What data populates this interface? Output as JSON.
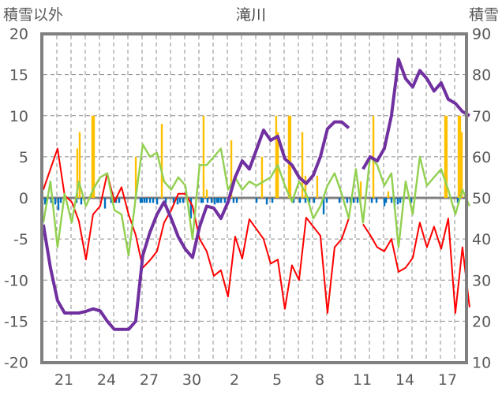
{
  "chart_data": {
    "type": "line",
    "title": "滝川",
    "ylabel_left": "積雪以外",
    "ylabel_right": "積雪",
    "ylim_left": [
      -20,
      20
    ],
    "ylim_right": [
      10,
      90
    ],
    "yticks_left": [
      "20",
      "15",
      "10",
      "5",
      "0",
      "-5",
      "-10",
      "-15",
      "-20"
    ],
    "yticks_right": [
      "90",
      "80",
      "70",
      "60",
      "50",
      "40",
      "30",
      "20",
      "10"
    ],
    "xlim_days": [
      0,
      30
    ],
    "x_categories_start_day": 20,
    "xtick_labels": [
      {
        "label": "21",
        "day": 1.5
      },
      {
        "label": "24",
        "day": 4.5
      },
      {
        "label": "27",
        "day": 7.5
      },
      {
        "label": "30",
        "day": 10.5
      },
      {
        "label": "2",
        "day": 13.5
      },
      {
        "label": "5",
        "day": 16.5
      },
      {
        "label": "8",
        "day": 19.5
      },
      {
        "label": "11",
        "day": 22.5
      },
      {
        "label": "14",
        "day": 25.5
      },
      {
        "label": "17",
        "day": 28.5
      }
    ],
    "grid": true,
    "colors": {
      "red": "#ff0000",
      "green": "#92d050",
      "purple": "#7030a0",
      "orange": "#ffc000",
      "blue": "#0070c0",
      "frame": "#808080"
    },
    "series": [
      {
        "name": "red-series",
        "axis": "left",
        "color": "#ff0000",
        "x_start": 0.05,
        "x_step": 0.5,
        "values": [
          1,
          3.5,
          6,
          0.3,
          -0.5,
          -2.8,
          -7.5,
          -2,
          -1,
          3,
          -0.5,
          1.3,
          -2,
          -4.5,
          -8.5,
          -7.6,
          -6.5,
          -3,
          -1.5,
          0.5,
          0.5,
          -1,
          -5,
          -6.5,
          -9.5,
          -8.8,
          -12,
          -4.7,
          -7.4,
          -2.6,
          -3.8,
          -5,
          -8,
          -7.5,
          -13.5,
          -8.2,
          -10,
          -2.4,
          -3.5,
          -4.6,
          -14,
          -6,
          -5,
          -2.5,
          null,
          -3.2,
          -4.5,
          -6,
          -6.5,
          -5,
          -9,
          -8.5,
          -7.3,
          -3,
          -6,
          -3.5,
          -6.2,
          -2.5,
          -14,
          -6,
          -13.3
        ]
      },
      {
        "name": "green-series",
        "axis": "left",
        "color": "#92d050",
        "x_start": 0.05,
        "x_step": 0.5,
        "values": [
          -3,
          2,
          -6,
          0.5,
          -3,
          2,
          -1,
          1,
          2.5,
          3,
          -1.5,
          -2,
          -7,
          0,
          6.5,
          5,
          5.5,
          2,
          1,
          2.5,
          1.5,
          -5,
          4,
          4,
          5,
          6,
          1,
          2.5,
          1,
          2,
          1.5,
          2,
          2.5,
          4,
          1.5,
          -0.5,
          2,
          0.5,
          -2.5,
          -1,
          1.5,
          3,
          0.5,
          -2.5,
          3.5,
          -3,
          5,
          4,
          1.5,
          3,
          -6,
          2,
          -2,
          5,
          1.5,
          2.5,
          3.5,
          1,
          -2,
          1,
          -1
        ]
      },
      {
        "name": "purple-series",
        "axis": "right",
        "color": "#7030a0",
        "x_start": 0.05,
        "x_step": 0.5,
        "values": [
          43.5,
          33,
          25,
          22,
          22,
          22,
          22.4,
          23,
          22.5,
          20,
          18,
          18,
          18,
          20,
          36,
          41.6,
          46,
          49,
          45,
          40.5,
          37.5,
          35.5,
          43,
          48,
          47.5,
          45,
          49,
          55,
          59,
          57,
          61.7,
          66.5,
          64,
          65,
          59.5,
          58,
          55,
          53.5,
          55.5,
          60,
          66.8,
          68.5,
          68.5,
          67,
          null,
          57,
          60,
          59,
          62,
          70,
          83.7,
          79,
          77,
          81,
          79,
          76,
          78,
          74,
          73,
          71,
          70
        ]
      }
    ],
    "bars_positive": {
      "name": "orange-bars",
      "axis": "left",
      "color": "#ffc000",
      "points": [
        [
          2.44,
          6
        ],
        [
          2.61,
          8
        ],
        [
          3.5,
          10
        ],
        [
          3.61,
          10
        ],
        [
          6.56,
          5
        ],
        [
          8.39,
          9
        ],
        [
          11.33,
          10
        ],
        [
          11.56,
          1
        ],
        [
          13.28,
          7
        ],
        [
          15.44,
          5
        ],
        [
          16.44,
          10
        ],
        [
          16.56,
          8
        ],
        [
          17.33,
          10
        ],
        [
          17.44,
          10
        ],
        [
          18.28,
          8
        ],
        [
          18.5,
          2.7
        ],
        [
          19.33,
          2.7
        ],
        [
          22.39,
          2
        ],
        [
          23.28,
          10
        ],
        [
          24.33,
          0.8
        ],
        [
          28.33,
          10
        ],
        [
          28.44,
          10
        ],
        [
          29.28,
          10
        ],
        [
          29.39,
          10
        ],
        [
          29.5,
          8
        ]
      ]
    },
    "bars_negative": {
      "name": "blue-bars",
      "axis": "left",
      "color": "#0070c0",
      "points": [
        [
          0.17,
          -0.8
        ],
        [
          0.22,
          -0.6
        ],
        [
          0.61,
          -0.6
        ],
        [
          0.89,
          -0.8
        ],
        [
          1.11,
          -1.5
        ],
        [
          1.28,
          -0.6
        ],
        [
          2.39,
          -0.6
        ],
        [
          2.72,
          -0.8
        ],
        [
          4.39,
          -1.3
        ],
        [
          4.83,
          -0.6
        ],
        [
          5.17,
          -0.6
        ],
        [
          5.39,
          -0.6
        ],
        [
          6.89,
          -0.6
        ],
        [
          7,
          -0.6
        ],
        [
          7.17,
          -0.6
        ],
        [
          7.33,
          -0.6
        ],
        [
          7.56,
          -0.6
        ],
        [
          7.78,
          -0.6
        ],
        [
          8.06,
          -0.8
        ],
        [
          8.67,
          -0.6
        ],
        [
          9.22,
          -0.6
        ],
        [
          9.5,
          -0.8
        ],
        [
          9.67,
          -0.6
        ],
        [
          9.89,
          -0.6
        ],
        [
          10.44,
          -2.5
        ],
        [
          11.17,
          -0.6
        ],
        [
          11.28,
          -0.6
        ],
        [
          11.61,
          -0.6
        ],
        [
          11.89,
          -0.6
        ],
        [
          12.11,
          -0.8
        ],
        [
          12.28,
          -0.6
        ],
        [
          12.39,
          -0.6
        ],
        [
          12.56,
          -0.6
        ],
        [
          12.83,
          -0.6
        ],
        [
          13.11,
          -0.6
        ],
        [
          13.44,
          -0.6
        ],
        [
          13.67,
          -0.6
        ],
        [
          15.06,
          -0.6
        ],
        [
          15.78,
          -0.8
        ],
        [
          16.17,
          -0.6
        ],
        [
          17.67,
          -0.6
        ],
        [
          18.11,
          -0.6
        ],
        [
          18.5,
          -0.6
        ],
        [
          18.78,
          -0.6
        ],
        [
          19.11,
          -0.6
        ],
        [
          19.78,
          -2
        ],
        [
          20,
          -0.6
        ],
        [
          20.89,
          -0.6
        ],
        [
          21.44,
          -0.6
        ],
        [
          21.67,
          -0.6
        ],
        [
          21.89,
          -0.6
        ],
        [
          22.17,
          -0.6
        ],
        [
          23.17,
          -0.6
        ],
        [
          23.5,
          -0.6
        ],
        [
          24.06,
          -1
        ],
        [
          24.17,
          -0.6
        ],
        [
          24.56,
          -0.6
        ],
        [
          24.78,
          -1.4
        ],
        [
          25,
          -0.8
        ],
        [
          25.17,
          -0.6
        ],
        [
          25.39,
          -0.6
        ],
        [
          25.94,
          -0.6
        ],
        [
          29.22,
          -0.6
        ]
      ]
    }
  }
}
